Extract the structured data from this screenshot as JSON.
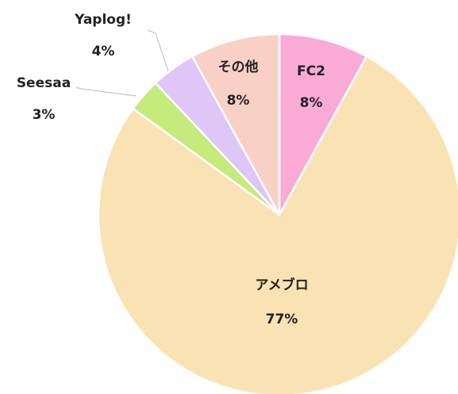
{
  "chart_data": {
    "type": "pie",
    "categories": [
      "FC2",
      "アメブロ",
      "Seesaa",
      "Yaplog!",
      "その他"
    ],
    "values": [
      8,
      77,
      3,
      4,
      8
    ],
    "value_labels": [
      "8%",
      "77%",
      "3%",
      "4%",
      "8%"
    ],
    "colors": [
      "#f9abd6",
      "#f9e2b4",
      "#c6ea7c",
      "#dec6f7",
      "#f9d0c6"
    ]
  }
}
